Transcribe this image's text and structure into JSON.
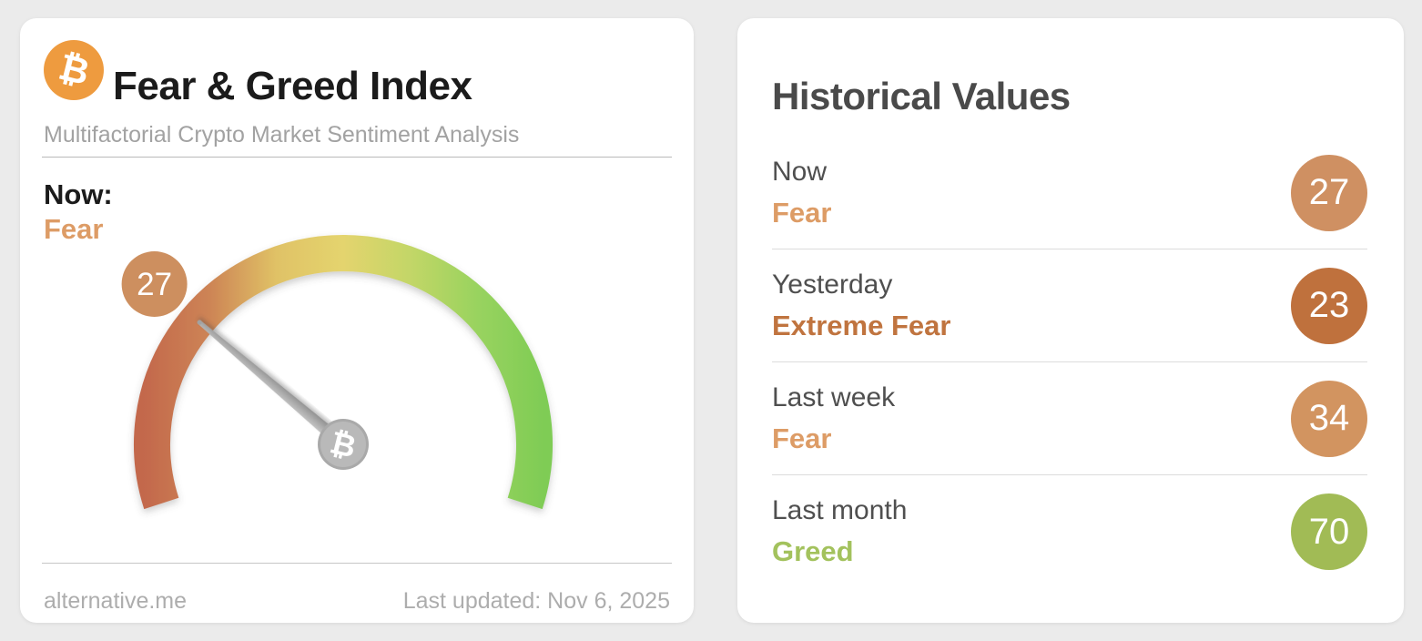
{
  "icons": {
    "bitcoin": "₿"
  },
  "gauge_card": {
    "title": "Fear & Greed Index",
    "subtitle": "Multifactorial Crypto Market Sentiment Analysis",
    "now_label": "Now:",
    "now_sentiment": "Fear",
    "now_sentiment_color": "#dd9c66",
    "source": "alternative.me",
    "last_updated": "Last updated: Nov 6, 2025",
    "bitcoin_orange": "#ee9b3f",
    "value_badge_color": "#cd8f5f"
  },
  "historical_card": {
    "title": "Historical Values",
    "rows": [
      {
        "label": "Now",
        "sentiment": "Fear",
        "value": "27",
        "sentiment_color": "#dd9c66",
        "badge_color": "#cf9062"
      },
      {
        "label": "Yesterday",
        "sentiment": "Extreme Fear",
        "value": "23",
        "sentiment_color": "#c0743f",
        "badge_color": "#bf713d"
      },
      {
        "label": "Last week",
        "sentiment": "Fear",
        "value": "34",
        "sentiment_color": "#dd9c66",
        "badge_color": "#d29460"
      },
      {
        "label": "Last month",
        "sentiment": "Greed",
        "value": "70",
        "sentiment_color": "#a3c25d",
        "badge_color": "#a1bb55"
      }
    ]
  },
  "chart_data": {
    "type": "gauge",
    "title": "Fear & Greed Index",
    "value": 27,
    "min": 0,
    "max": 100,
    "classification": "Fear",
    "start_angle_deg": 198,
    "sweep_deg": 216,
    "scale_colors": [
      "#c3684c",
      "#cd8455",
      "#e0c266",
      "#e4d46e",
      "#c3d667",
      "#99d35f",
      "#7fcc55"
    ],
    "needle_color": "#a8a8a8",
    "historical": [
      {
        "period": "Now",
        "value": 27,
        "classification": "Fear"
      },
      {
        "period": "Yesterday",
        "value": 23,
        "classification": "Extreme Fear"
      },
      {
        "period": "Last week",
        "value": 34,
        "classification": "Fear"
      },
      {
        "period": "Last month",
        "value": 70,
        "classification": "Greed"
      }
    ]
  }
}
